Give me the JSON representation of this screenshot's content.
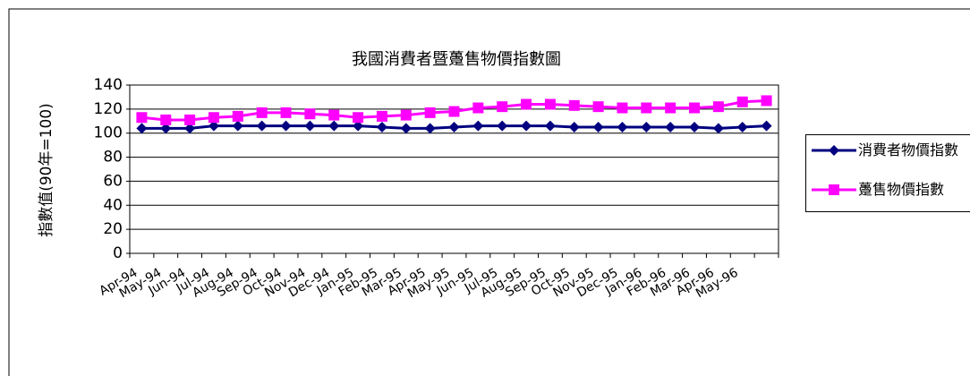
{
  "chart_data": {
    "type": "line",
    "title": "我國消費者暨躉售物價指數圖",
    "y_label": "指數值(90年=100)",
    "categories": [
      "Apr-94",
      "May-94",
      "Jun-94",
      "Jul-94",
      "Aug-94",
      "Sep-94",
      "Oct-94",
      "Nov-94",
      "Dec-94",
      "Jan-95",
      "Feb-95",
      "Mar-95",
      "Apr-95",
      "May-95",
      "Jun-95",
      "Jul-95",
      "Aug-95",
      "Sep-95",
      "Oct-95",
      "Nov-95",
      "Dec-95",
      "Jan-96",
      "Feb-96",
      "Mar-96",
      "Apr-96",
      "May-96",
      null
    ],
    "series": [
      {
        "name": "消費者物價指數",
        "color": "#000080",
        "marker": "diamond",
        "values": [
          104,
          104,
          104,
          106,
          106,
          106,
          106,
          106,
          106,
          106,
          105,
          104,
          104,
          105,
          106,
          106,
          106,
          106,
          105,
          105,
          105,
          105,
          105,
          105,
          104,
          105,
          106
        ]
      },
      {
        "name": "躉售物價指數",
        "color": "#ff00ff",
        "marker": "square",
        "values": [
          113,
          111,
          111,
          113,
          114,
          117,
          117,
          116,
          115,
          113,
          114,
          115,
          117,
          118,
          121,
          122,
          124,
          124,
          123,
          122,
          121,
          121,
          121,
          121,
          122,
          126,
          127
        ]
      }
    ],
    "ylim": [
      0,
      140
    ],
    "yticks": [
      0,
      20,
      40,
      60,
      80,
      100,
      120,
      140
    ],
    "grid": true
  }
}
